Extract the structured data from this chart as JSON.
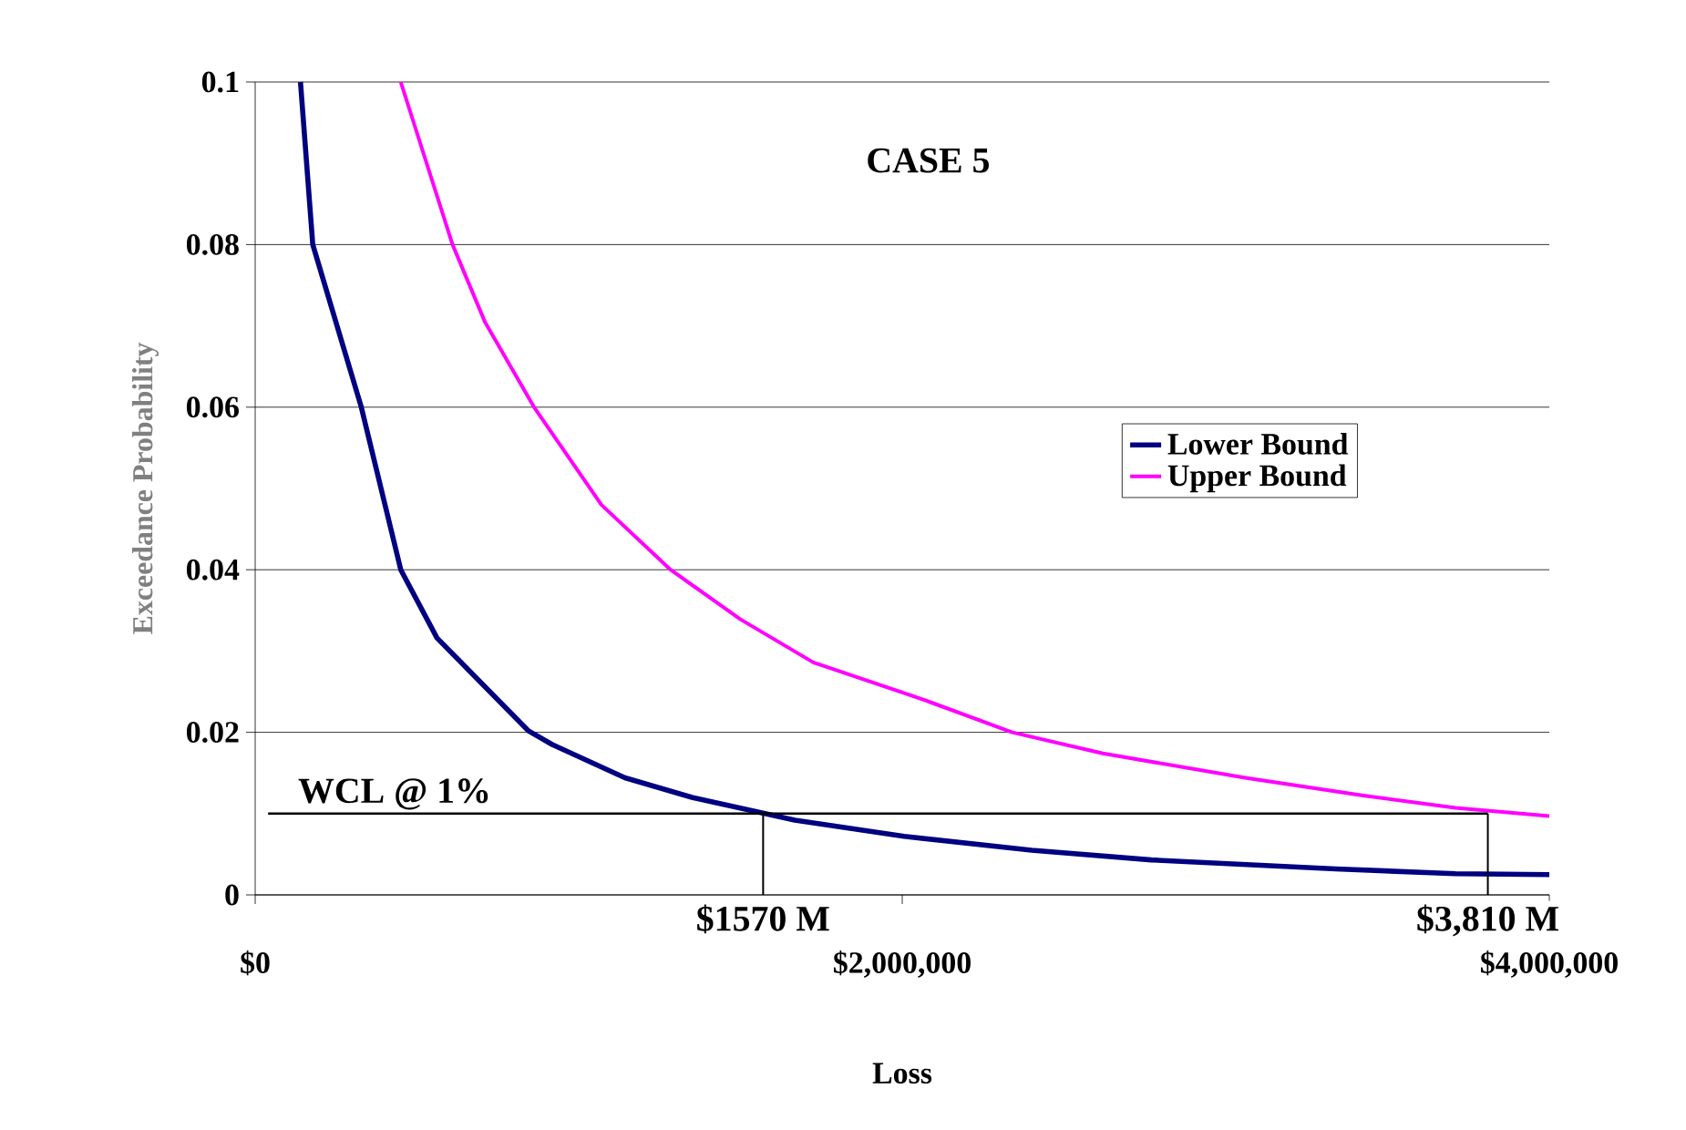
{
  "chart_data": {
    "type": "line",
    "title": "CASE 5",
    "xlabel": "Loss",
    "ylabel": "Exceedance Probability",
    "xlim": [
      0,
      4000000
    ],
    "ylim": [
      0,
      0.1
    ],
    "xticks": [
      {
        "value": 0,
        "label": "$0"
      },
      {
        "value": 2000000,
        "label": "$2,000,000"
      },
      {
        "value": 4000000,
        "label": "$4,000,000"
      }
    ],
    "yticks": [
      0,
      0.02,
      0.04,
      0.06,
      0.08,
      0.1
    ],
    "grid": "y",
    "legend": "right",
    "marker": "none",
    "line_style": "solid",
    "series": [
      {
        "name": "Lower Bound",
        "color": "#000080",
        "x": [
          140000,
          178000,
          328000,
          450000,
          562000,
          844000,
          918000,
          1143000,
          1350000,
          1668000,
          2006000,
          2400000,
          2770000,
          3340000,
          3710000,
          4000000
        ],
        "values": [
          0.1,
          0.08,
          0.06,
          0.04,
          0.0316,
          0.0202,
          0.0185,
          0.0144,
          0.012,
          0.0092,
          0.0072,
          0.0055,
          0.0043,
          0.0032,
          0.0026,
          0.0025
        ]
      },
      {
        "name": "Upper Bound",
        "color": "#ff00ff",
        "x": [
          450000,
          610000,
          710000,
          862000,
          1070000,
          1284000,
          1500000,
          1725000,
          2060000,
          2340000,
          2620000,
          3060000,
          3430000,
          3710000,
          4000000
        ],
        "values": [
          0.1,
          0.08,
          0.0705,
          0.06,
          0.048,
          0.04,
          0.0339,
          0.0286,
          0.0241,
          0.02,
          0.0174,
          0.0144,
          0.0122,
          0.0107,
          0.0097
        ]
      }
    ],
    "ref_lines": [
      {
        "axis": "y",
        "value": 0.01,
        "label": "WCL @ 1%",
        "color": "#000000"
      },
      {
        "axis": "x",
        "value": 1570000,
        "label": "$1570 M",
        "color": "#000000"
      },
      {
        "axis": "x",
        "value": 3810000,
        "label": "$3,810 M",
        "color": "#000000"
      }
    ]
  }
}
